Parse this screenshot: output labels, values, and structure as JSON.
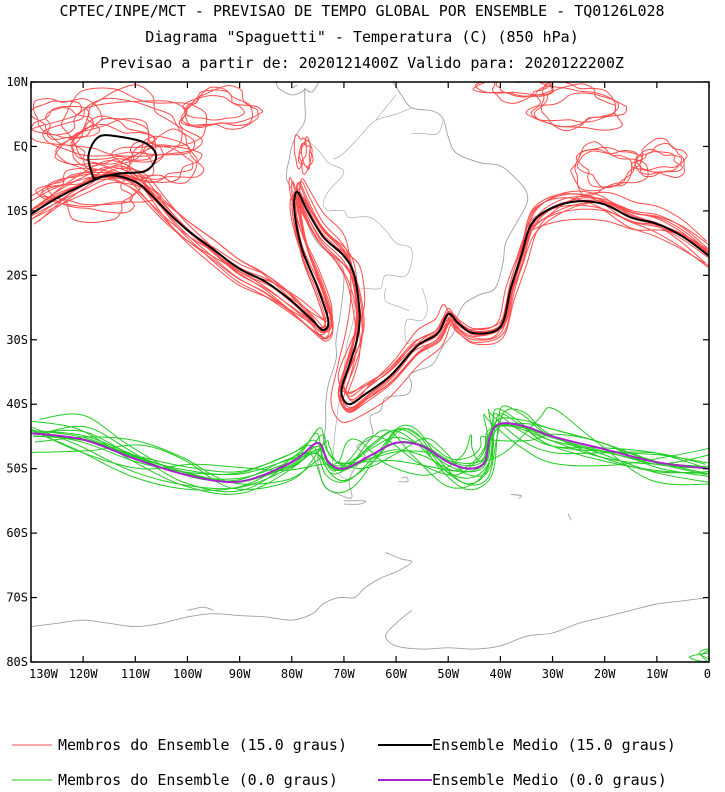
{
  "titles": {
    "line1": "CPTEC/INPE/MCT - PREVISAO DE TEMPO GLOBAL POR ENSEMBLE - TQ0126L028",
    "line2": "Diagrama \"Spaguetti\" - Temperatura (C) (850 hPa)",
    "line3": "Previsao a partir de: 2020121400Z  Valido para: 2020122200Z"
  },
  "map": {
    "lon_range": [
      -130,
      0
    ],
    "lat_range": [
      -80,
      10
    ],
    "lat_ticks": [
      "10N",
      "EQ",
      "10S",
      "20S",
      "30S",
      "40S",
      "50S",
      "60S",
      "70S",
      "80S"
    ],
    "lon_ticks": [
      "130W",
      "120W",
      "110W",
      "100W",
      "90W",
      "80W",
      "70W",
      "60W",
      "50W",
      "40W",
      "30W",
      "20W",
      "10W",
      "0"
    ],
    "land_color": "#a0a0a0"
  },
  "contours": {
    "warm": {
      "member_color": "#ff4d4d",
      "mean_color": "#000000",
      "mean": [
        [
          -130,
          -10.5
        ],
        [
          -125,
          -8
        ],
        [
          -120,
          -6
        ],
        [
          -115,
          -4.5
        ],
        [
          -110,
          -5.5
        ],
        [
          -107,
          -7.5
        ],
        [
          -104,
          -10
        ],
        [
          -100,
          -13
        ],
        [
          -95,
          -16
        ],
        [
          -90,
          -19
        ],
        [
          -85,
          -21
        ],
        [
          -80,
          -24
        ],
        [
          -76,
          -27
        ],
        [
          -74,
          -28.5
        ],
        [
          -73,
          -27
        ],
        [
          -75,
          -22
        ],
        [
          -78,
          -16
        ],
        [
          -79.5,
          -10
        ],
        [
          -79,
          -7
        ],
        [
          -77,
          -10
        ],
        [
          -74,
          -14
        ],
        [
          -70,
          -17
        ],
        [
          -68,
          -20
        ],
        [
          -67,
          -26
        ],
        [
          -67.5,
          -30
        ],
        [
          -69,
          -34
        ],
        [
          -70.5,
          -38
        ],
        [
          -69,
          -40
        ],
        [
          -66,
          -38.5
        ],
        [
          -61,
          -35.5
        ],
        [
          -56,
          -31
        ],
        [
          -52,
          -29
        ],
        [
          -50,
          -26
        ],
        [
          -48,
          -27.5
        ],
        [
          -45,
          -29
        ],
        [
          -40,
          -28
        ],
        [
          -38,
          -22
        ],
        [
          -36,
          -17
        ],
        [
          -34,
          -12
        ],
        [
          -30,
          -9.5
        ],
        [
          -25,
          -8.5
        ],
        [
          -20,
          -9
        ],
        [
          -15,
          -11
        ],
        [
          -10,
          -12
        ],
        [
          -5,
          -14
        ],
        [
          0,
          -17
        ]
      ]
    },
    "warm_loops": [
      {
        "cx": -114,
        "cy": 0,
        "rx": 8,
        "ry": 4
      },
      {
        "cx": -112,
        "cy": 3,
        "rx": 12,
        "ry": 5
      },
      {
        "cx": -124,
        "cy": 4,
        "rx": 5,
        "ry": 3
      },
      {
        "cx": -94,
        "cy": 6,
        "rx": 6,
        "ry": 2.5
      },
      {
        "cx": -105,
        "cy": -2,
        "rx": 6,
        "ry": 3
      },
      {
        "cx": -118,
        "cy": -7,
        "rx": 9,
        "ry": 3
      },
      {
        "cx": -36,
        "cy": 9,
        "rx": 6,
        "ry": 1.5
      },
      {
        "cx": -25,
        "cy": 6,
        "rx": 7,
        "ry": 3
      },
      {
        "cx": -20,
        "cy": -3,
        "rx": 6,
        "ry": 3
      },
      {
        "cx": -10,
        "cy": -2,
        "rx": 4,
        "ry": 2
      },
      {
        "cx": -78,
        "cy": -1,
        "rx": 1,
        "ry": 2
      }
    ],
    "cold": {
      "member_color": "#22cc22",
      "mean_color": "#aa22cc",
      "mean": [
        [
          -130,
          -44.5
        ],
        [
          -120,
          -45.5
        ],
        [
          -110,
          -48.5
        ],
        [
          -100,
          -51
        ],
        [
          -90,
          -52
        ],
        [
          -80,
          -49
        ],
        [
          -75,
          -46
        ],
        [
          -73,
          -49
        ],
        [
          -70,
          -50
        ],
        [
          -65,
          -48
        ],
        [
          -60,
          -46
        ],
        [
          -55,
          -46.5
        ],
        [
          -50,
          -49
        ],
        [
          -46,
          -50
        ],
        [
          -43,
          -49
        ],
        [
          -42,
          -45
        ],
        [
          -40,
          -43
        ],
        [
          -35,
          -43.5
        ],
        [
          -30,
          -45
        ],
        [
          -20,
          -47
        ],
        [
          -10,
          -49
        ],
        [
          0,
          -50
        ]
      ]
    },
    "cold_loops": [
      {
        "cx": 4,
        "cy": -79,
        "rx": 6,
        "ry": 1.5
      }
    ]
  },
  "legend": {
    "items": [
      {
        "label": "Membros do Ensemble (15.0 graus)",
        "color": "#ff4d4d"
      },
      {
        "label": "Ensemble Medio (15.0 graus)",
        "color": "#000000"
      },
      {
        "label": "Membros do Ensemble (0.0 graus)",
        "color": "#22cc22"
      },
      {
        "label": "Ensemble Medio (0.0 graus)",
        "color": "#aa22cc"
      }
    ]
  }
}
